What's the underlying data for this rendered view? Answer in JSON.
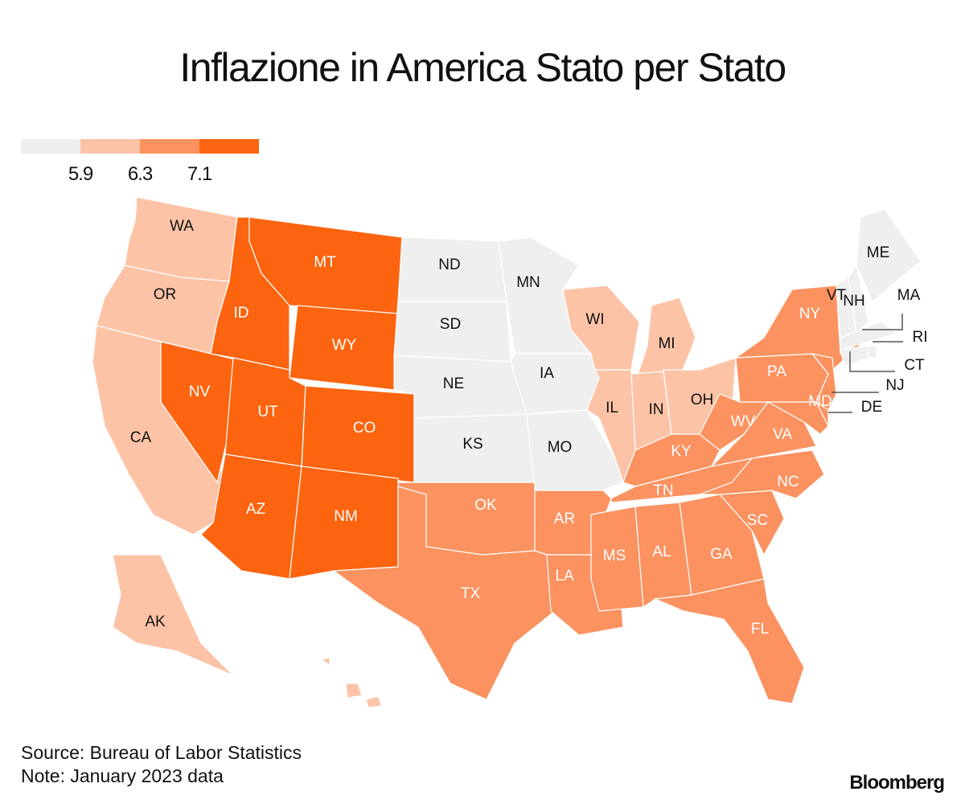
{
  "title": "Inflazione in America Stato per Stato",
  "legend": {
    "colors": [
      "#efefef",
      "#fdc3a6",
      "#fb9260",
      "#fc6410"
    ],
    "breaks": [
      "5.9",
      "6.3",
      "7.1"
    ]
  },
  "chart_data": {
    "type": "choropleth",
    "bins": [
      "< 5.9",
      "5.9–6.3",
      "6.3–7.1",
      "> 7.1"
    ],
    "states": [
      {
        "code": "WA",
        "bin": 1
      },
      {
        "code": "OR",
        "bin": 1
      },
      {
        "code": "CA",
        "bin": 1
      },
      {
        "code": "AK",
        "bin": 1
      },
      {
        "code": "HI",
        "bin": 1
      },
      {
        "code": "NV",
        "bin": 3
      },
      {
        "code": "ID",
        "bin": 3
      },
      {
        "code": "MT",
        "bin": 3
      },
      {
        "code": "WY",
        "bin": 3
      },
      {
        "code": "UT",
        "bin": 3
      },
      {
        "code": "CO",
        "bin": 3
      },
      {
        "code": "AZ",
        "bin": 3
      },
      {
        "code": "NM",
        "bin": 3
      },
      {
        "code": "ND",
        "bin": 0
      },
      {
        "code": "SD",
        "bin": 0
      },
      {
        "code": "NE",
        "bin": 0
      },
      {
        "code": "KS",
        "bin": 0
      },
      {
        "code": "MN",
        "bin": 0
      },
      {
        "code": "IA",
        "bin": 0
      },
      {
        "code": "MO",
        "bin": 0
      },
      {
        "code": "OK",
        "bin": 2
      },
      {
        "code": "TX",
        "bin": 2
      },
      {
        "code": "AR",
        "bin": 2
      },
      {
        "code": "LA",
        "bin": 2
      },
      {
        "code": "WI",
        "bin": 1
      },
      {
        "code": "MI",
        "bin": 1
      },
      {
        "code": "IL",
        "bin": 1
      },
      {
        "code": "IN",
        "bin": 1
      },
      {
        "code": "OH",
        "bin": 1
      },
      {
        "code": "KY",
        "bin": 2
      },
      {
        "code": "TN",
        "bin": 2
      },
      {
        "code": "MS",
        "bin": 2
      },
      {
        "code": "AL",
        "bin": 2
      },
      {
        "code": "GA",
        "bin": 2
      },
      {
        "code": "FL",
        "bin": 2
      },
      {
        "code": "SC",
        "bin": 2
      },
      {
        "code": "NC",
        "bin": 2
      },
      {
        "code": "VA",
        "bin": 2
      },
      {
        "code": "WV",
        "bin": 2
      },
      {
        "code": "PA",
        "bin": 2
      },
      {
        "code": "NY",
        "bin": 2
      },
      {
        "code": "MD",
        "bin": 2
      },
      {
        "code": "DE",
        "bin": 2
      },
      {
        "code": "NJ",
        "bin": 2
      },
      {
        "code": "VT",
        "bin": 0
      },
      {
        "code": "NH",
        "bin": 0
      },
      {
        "code": "ME",
        "bin": 0
      },
      {
        "code": "MA",
        "bin": 0
      },
      {
        "code": "CT",
        "bin": 0
      },
      {
        "code": "RI",
        "bin": 0
      }
    ]
  },
  "footer": {
    "source": "Source: Bureau of Labor Statistics",
    "note": "Note: January 2023 data",
    "brand": "Bloomberg"
  }
}
